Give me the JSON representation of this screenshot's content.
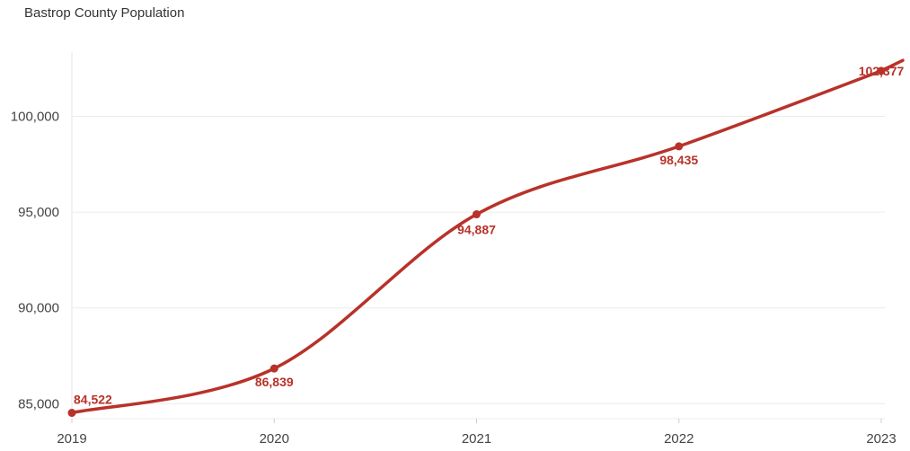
{
  "chart_data": {
    "type": "line",
    "title": "Bastrop County Population",
    "xlabel": "",
    "ylabel": "",
    "x": [
      2019,
      2020,
      2021,
      2022,
      2023
    ],
    "x_ticks": [
      "2019",
      "2020",
      "2021",
      "2022",
      "2023"
    ],
    "y_ticks": [
      "85,000",
      "90,000",
      "95,000",
      "100,000"
    ],
    "y_tick_values": [
      85000,
      90000,
      95000,
      100000
    ],
    "series": [
      {
        "values": [
          84522,
          86839,
          94887,
          98435,
          102377
        ],
        "labels": [
          "84,522",
          "86,839",
          "94,887",
          "98,435",
          "102,377"
        ],
        "color": "#b83229"
      }
    ],
    "xlim": [
      2019,
      2023
    ],
    "ylim": [
      84500,
      104200
    ],
    "grid": true,
    "legend": "none"
  }
}
